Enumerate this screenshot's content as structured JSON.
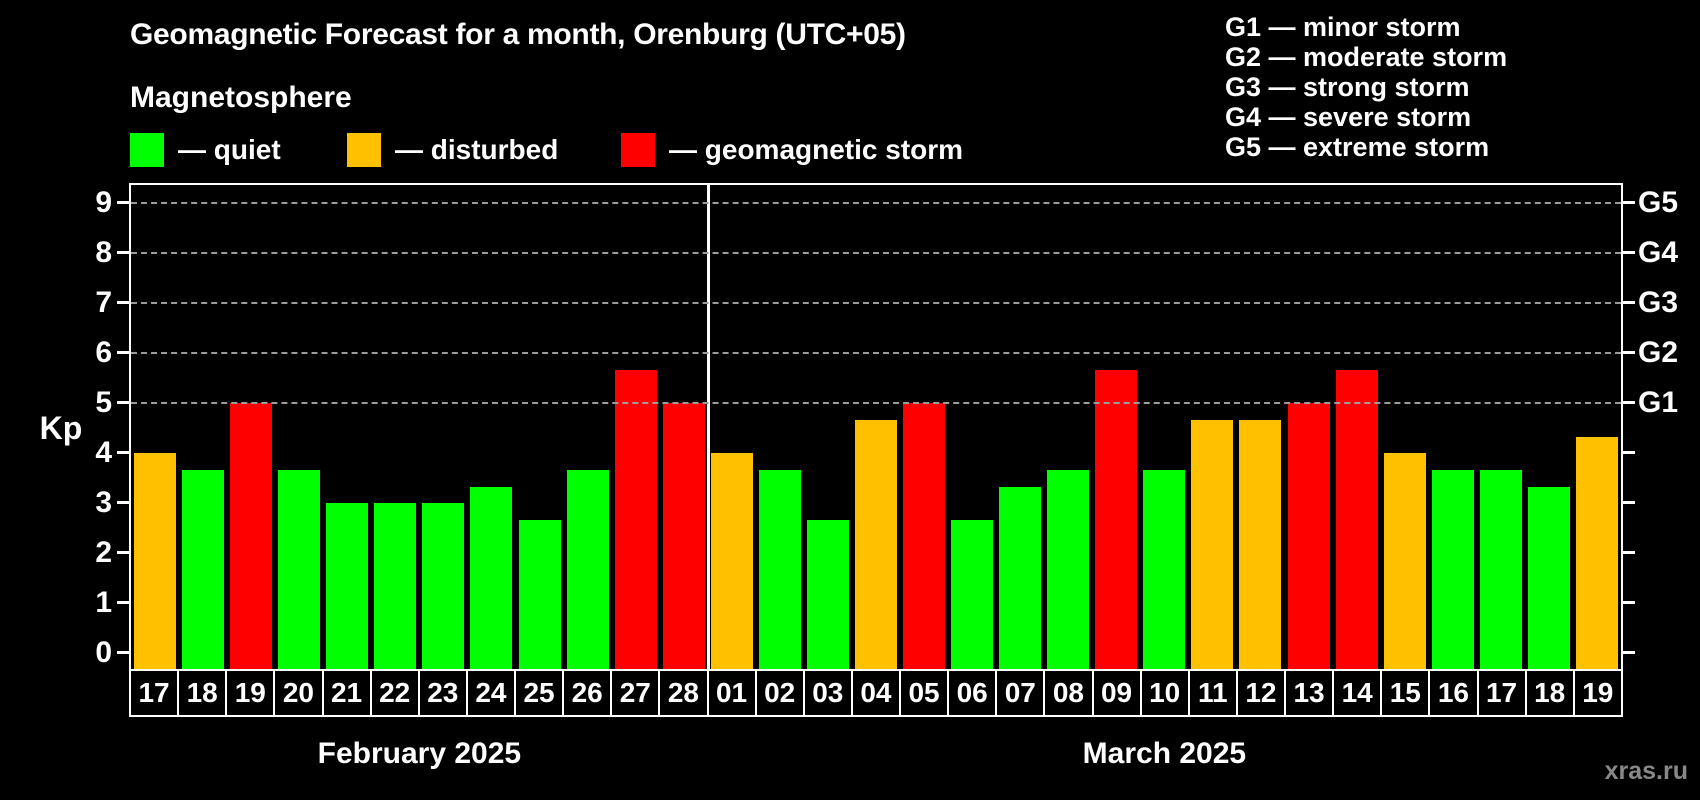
{
  "title": "Geomagnetic Forecast for a month, Orenburg (UTC+05)",
  "subtitle": "Magnetosphere",
  "legend": {
    "quiet": {
      "label": "— quiet",
      "color": "#00ff00"
    },
    "disturbed": {
      "label": "— disturbed",
      "color": "#ffc000"
    },
    "storm": {
      "label": "— geomagnetic storm",
      "color": "#ff0000"
    }
  },
  "storm_scale": {
    "items": [
      {
        "label": "G1 — minor storm"
      },
      {
        "label": "G2 — moderate storm"
      },
      {
        "label": "G3 — strong storm"
      },
      {
        "label": "G4 — severe storm"
      },
      {
        "label": "G5 — extreme storm"
      }
    ]
  },
  "watermark": "xras.ru",
  "chart_data": {
    "type": "bar",
    "ylabel": "Kp",
    "ylim": [
      0,
      9.4
    ],
    "yticks": [
      0,
      1,
      2,
      3,
      4,
      5,
      6,
      7,
      8,
      9
    ],
    "gridlines_at": [
      5,
      6,
      7,
      8,
      9
    ],
    "grid_style": "dashed",
    "legend_position": "top-left",
    "right_axis": [
      {
        "label": "G1",
        "kp": 5
      },
      {
        "label": "G2",
        "kp": 6
      },
      {
        "label": "G3",
        "kp": 7
      },
      {
        "label": "G4",
        "kp": 8
      },
      {
        "label": "G5",
        "kp": 9
      }
    ],
    "level_colors": {
      "quiet": "#00ff00",
      "disturbed": "#ffc000",
      "storm": "#ff0000"
    },
    "months": [
      {
        "label": "February 2025",
        "days": [
          {
            "date": "17",
            "kp": 4.0,
            "level": "disturbed"
          },
          {
            "date": "18",
            "kp": 3.67,
            "level": "quiet"
          },
          {
            "date": "19",
            "kp": 5.0,
            "level": "storm"
          },
          {
            "date": "20",
            "kp": 3.67,
            "level": "quiet"
          },
          {
            "date": "21",
            "kp": 3.0,
            "level": "quiet"
          },
          {
            "date": "22",
            "kp": 3.0,
            "level": "quiet"
          },
          {
            "date": "23",
            "kp": 3.0,
            "level": "quiet"
          },
          {
            "date": "24",
            "kp": 3.33,
            "level": "quiet"
          },
          {
            "date": "25",
            "kp": 2.67,
            "level": "quiet"
          },
          {
            "date": "26",
            "kp": 3.67,
            "level": "quiet"
          },
          {
            "date": "27",
            "kp": 5.67,
            "level": "storm"
          },
          {
            "date": "28",
            "kp": 5.0,
            "level": "storm"
          }
        ]
      },
      {
        "label": "March 2025",
        "days": [
          {
            "date": "01",
            "kp": 4.0,
            "level": "disturbed"
          },
          {
            "date": "02",
            "kp": 3.67,
            "level": "quiet"
          },
          {
            "date": "03",
            "kp": 2.67,
            "level": "quiet"
          },
          {
            "date": "04",
            "kp": 4.67,
            "level": "disturbed"
          },
          {
            "date": "05",
            "kp": 5.0,
            "level": "storm"
          },
          {
            "date": "06",
            "kp": 2.67,
            "level": "quiet"
          },
          {
            "date": "07",
            "kp": 3.33,
            "level": "quiet"
          },
          {
            "date": "08",
            "kp": 3.67,
            "level": "quiet"
          },
          {
            "date": "09",
            "kp": 5.67,
            "level": "storm"
          },
          {
            "date": "10",
            "kp": 3.67,
            "level": "quiet"
          },
          {
            "date": "11",
            "kp": 4.67,
            "level": "disturbed"
          },
          {
            "date": "12",
            "kp": 4.67,
            "level": "disturbed"
          },
          {
            "date": "13",
            "kp": 5.0,
            "level": "storm"
          },
          {
            "date": "14",
            "kp": 5.67,
            "level": "storm"
          },
          {
            "date": "15",
            "kp": 4.0,
            "level": "disturbed"
          },
          {
            "date": "16",
            "kp": 3.67,
            "level": "quiet"
          },
          {
            "date": "17",
            "kp": 3.67,
            "level": "quiet"
          },
          {
            "date": "18",
            "kp": 3.33,
            "level": "quiet"
          },
          {
            "date": "19",
            "kp": 4.33,
            "level": "disturbed"
          }
        ]
      }
    ]
  }
}
